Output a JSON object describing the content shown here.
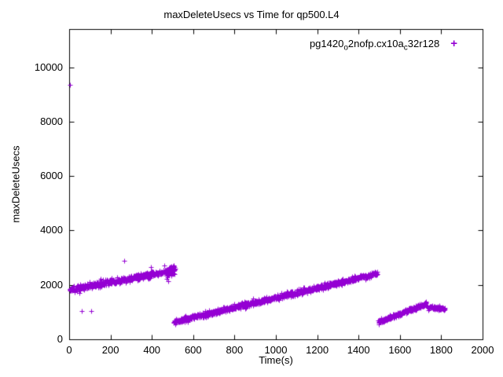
{
  "title": "maxDeleteUsecs vs Time for qp500.L4",
  "legend": {
    "marker": "+",
    "marker_color": "#9400d3",
    "label_parts": [
      {
        "t": "pg1420",
        "sub": false
      },
      {
        "t": "o",
        "sub": true
      },
      {
        "t": "2nofp.cx10a",
        "sub": false
      },
      {
        "t": "c",
        "sub": true
      },
      {
        "t": "32r128",
        "sub": false
      }
    ]
  },
  "chart_data": {
    "type": "scatter",
    "title": "maxDeleteUsecs vs Time for qp500.L4",
    "xlabel": "Time(s)",
    "ylabel": "maxDeleteUsecs",
    "series_name": "pg1420_o2nofp.cx10a_c32r128",
    "marker": "plus",
    "color": "#9400d3",
    "grid": false,
    "legend_position": "top-right-inside",
    "xlim": [
      0,
      2000
    ],
    "ylim": [
      0,
      11400
    ],
    "x_ticks": [
      0,
      200,
      400,
      600,
      800,
      1000,
      1200,
      1400,
      1600,
      1800,
      2000
    ],
    "y_ticks": [
      0,
      2000,
      4000,
      6000,
      8000,
      10000
    ],
    "segments": [
      {
        "x_start": 2,
        "x_end": 488,
        "y_start": 1820,
        "y_end": 2520,
        "noise": 110,
        "n": 430
      },
      {
        "x_start": 470,
        "x_end": 512,
        "y_start": 2350,
        "y_end": 2620,
        "noise": 170,
        "n": 70
      },
      {
        "x_start": 505,
        "x_end": 1492,
        "y_start": 640,
        "y_end": 2430,
        "noise": 95,
        "n": 900
      },
      {
        "x_start": 1495,
        "x_end": 1728,
        "y_start": 640,
        "y_end": 1300,
        "noise": 80,
        "n": 230
      },
      {
        "x_start": 1730,
        "x_end": 1818,
        "y_start": 1190,
        "y_end": 1110,
        "noise": 60,
        "n": 90
      }
    ],
    "outliers": [
      [
        3,
        9350
      ],
      [
        62,
        1050
      ],
      [
        108,
        1050
      ],
      [
        268,
        2900
      ]
    ]
  }
}
